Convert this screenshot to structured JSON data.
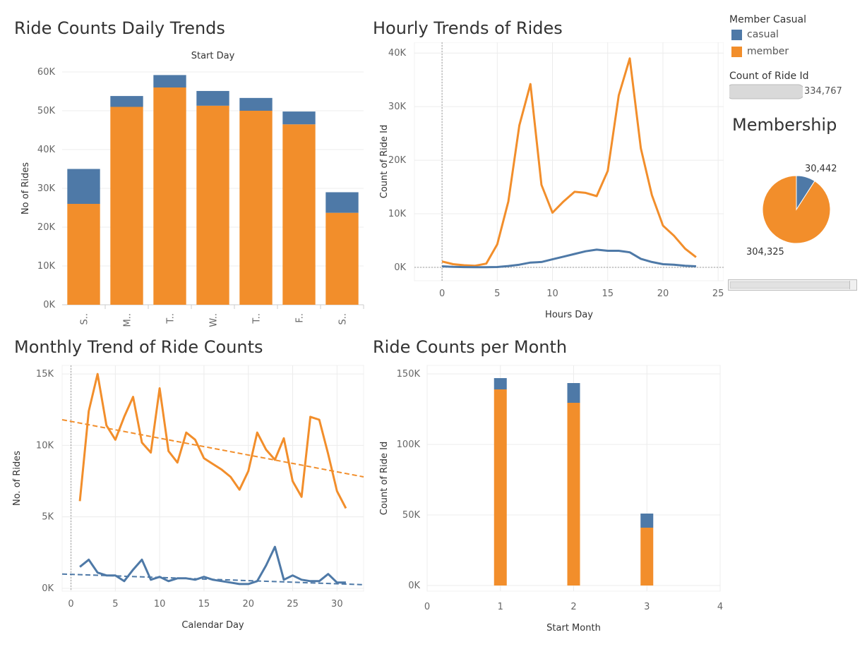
{
  "colors": {
    "casual": "#4e79a7",
    "member": "#f28e2b",
    "grid": "#ececec",
    "axis": "#999999"
  },
  "legend": {
    "title": "Member Casual",
    "items": [
      "casual",
      "member"
    ]
  },
  "size_legend": {
    "title": "Count of Ride Id",
    "value": "334,767"
  },
  "membership": {
    "title": "Membership",
    "casual_label": "30,442",
    "member_label": "304,325"
  },
  "chart_data": [
    {
      "id": "daily",
      "type": "bar",
      "stacked": true,
      "title": "Ride Counts Daily Trends",
      "header": "Start Day",
      "xlabel": "",
      "ylabel": "No of Rides",
      "categories": [
        "S..",
        "M..",
        "T..",
        "W..",
        "T..",
        "F..",
        "S.."
      ],
      "series": [
        {
          "name": "member",
          "values": [
            26000,
            51000,
            56000,
            51300,
            50000,
            46500,
            23700
          ]
        },
        {
          "name": "casual",
          "values": [
            9000,
            2800,
            3200,
            3800,
            3300,
            3300,
            5300
          ]
        }
      ],
      "ylim": [
        0,
        60000
      ],
      "yticks": [
        0,
        10000,
        20000,
        30000,
        40000,
        50000,
        60000
      ],
      "yticklabels": [
        "0K",
        "10K",
        "20K",
        "30K",
        "40K",
        "50K",
        "60K"
      ]
    },
    {
      "id": "hourly",
      "type": "line",
      "title": "Hourly Trends of Rides",
      "xlabel": "Hours Day",
      "ylabel": "Count of Ride Id",
      "x": [
        0,
        1,
        2,
        3,
        4,
        5,
        6,
        7,
        8,
        9,
        10,
        11,
        12,
        13,
        14,
        15,
        16,
        17,
        18,
        19,
        20,
        21,
        22,
        23
      ],
      "series": [
        {
          "name": "member",
          "values": [
            1100,
            600,
            400,
            300,
            700,
            4300,
            12300,
            26500,
            34200,
            15400,
            10200,
            12300,
            14100,
            13900,
            13300,
            18000,
            32100,
            39000,
            22200,
            13500,
            7800,
            5900,
            3500,
            1900
          ]
        },
        {
          "name": "casual",
          "values": [
            200,
            100,
            50,
            30,
            30,
            70,
            250,
            500,
            900,
            1000,
            1500,
            2000,
            2500,
            3000,
            3300,
            3100,
            3100,
            2800,
            1600,
            1000,
            600,
            500,
            300,
            200
          ]
        }
      ],
      "xlim": [
        -2.5,
        25.5
      ],
      "ylim": [
        -2500,
        42000
      ],
      "xticks": [
        0,
        5,
        10,
        15,
        20,
        25
      ],
      "yticks": [
        0,
        10000,
        20000,
        30000,
        40000
      ],
      "yticklabels": [
        "0K",
        "10K",
        "20K",
        "30K",
        "40K"
      ]
    },
    {
      "id": "monthly_trend",
      "type": "line",
      "title": "Monthly Trend of Ride Counts",
      "xlabel": "Calendar Day",
      "ylabel": "No. of Rides",
      "x": [
        1,
        2,
        3,
        4,
        5,
        6,
        7,
        8,
        9,
        10,
        11,
        12,
        13,
        14,
        15,
        16,
        17,
        18,
        19,
        20,
        21,
        22,
        23,
        24,
        25,
        26,
        27,
        28,
        29,
        30,
        31
      ],
      "series": [
        {
          "name": "member",
          "values": [
            6100,
            12400,
            15000,
            11400,
            10400,
            12000,
            13400,
            10200,
            9500,
            14000,
            9600,
            8800,
            10900,
            10400,
            9100,
            8700,
            8300,
            7800,
            6900,
            8200,
            10900,
            9700,
            9000,
            10500,
            7500,
            6400,
            12000,
            11800,
            9400,
            6800,
            5600
          ]
        },
        {
          "name": "casual",
          "values": [
            1500,
            2000,
            1100,
            900,
            900,
            500,
            1300,
            2000,
            600,
            800,
            500,
            700,
            700,
            600,
            800,
            600,
            500,
            400,
            300,
            300,
            500,
            1600,
            2900,
            600,
            900,
            600,
            500,
            500,
            1000,
            400,
            400
          ]
        }
      ],
      "trend_lines": [
        {
          "name": "member",
          "x": [
            -1,
            33
          ],
          "values": [
            11800,
            7800
          ]
        },
        {
          "name": "casual",
          "x": [
            -1,
            33
          ],
          "values": [
            1000,
            250
          ]
        }
      ],
      "xlim": [
        -1,
        33
      ],
      "ylim": [
        -200,
        15600
      ],
      "xticks": [
        0,
        5,
        10,
        15,
        20,
        25,
        30
      ],
      "yticks": [
        0,
        5000,
        10000,
        15000
      ],
      "yticklabels": [
        "0K",
        "5K",
        "10K",
        "15K"
      ]
    },
    {
      "id": "per_month",
      "type": "bar",
      "stacked": true,
      "title": "Ride Counts per Month",
      "xlabel": "Start Month",
      "ylabel": "Count of Ride Id",
      "categories": [
        1,
        2,
        3
      ],
      "series": [
        {
          "name": "member",
          "values": [
            139000,
            129500,
            41000
          ]
        },
        {
          "name": "casual",
          "values": [
            8000,
            14000,
            10000
          ]
        }
      ],
      "xlim": [
        0,
        4
      ],
      "ylim": [
        -4000,
        156000
      ],
      "xticks": [
        0,
        1,
        2,
        3,
        4
      ],
      "yticks": [
        0,
        50000,
        100000,
        150000
      ],
      "yticklabels": [
        "0K",
        "50K",
        "100K",
        "150K"
      ]
    },
    {
      "id": "membership_pie",
      "type": "pie",
      "title": "Membership",
      "labels": [
        "casual",
        "member"
      ],
      "values": [
        30442,
        304325
      ]
    }
  ]
}
